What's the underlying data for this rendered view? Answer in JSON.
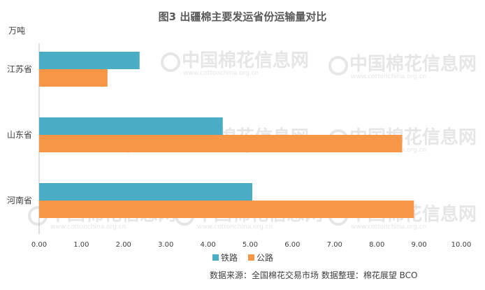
{
  "chart_data": {
    "type": "bar",
    "orientation": "horizontal",
    "title": "图3  出疆棉主要发运省份运输量对比",
    "unit_label": "万吨",
    "categories": [
      "江苏省",
      "山东省",
      "河南省"
    ],
    "series": [
      {
        "name": "铁路",
        "values": [
          2.38,
          4.35,
          5.05
        ]
      },
      {
        "name": "公路",
        "values": [
          1.62,
          8.6,
          8.88
        ]
      }
    ],
    "xlim": [
      0,
      10
    ],
    "x_ticks": [
      "0.00",
      "1.00",
      "2.00",
      "3.00",
      "4.00",
      "5.00",
      "6.00",
      "7.00",
      "8.00",
      "9.00",
      "10.00"
    ],
    "grid": false,
    "legend_position": "bottom-right"
  },
  "colors": {
    "rail": "#4bacc6",
    "road": "#f79646",
    "axis": "#bfbfbf"
  },
  "source": "数据来源：全国棉花交易市场    数据整理：棉花展望 BCO",
  "watermark": {
    "text": "中国棉花信息网",
    "sub": "www.cottonchina.org.cn"
  }
}
